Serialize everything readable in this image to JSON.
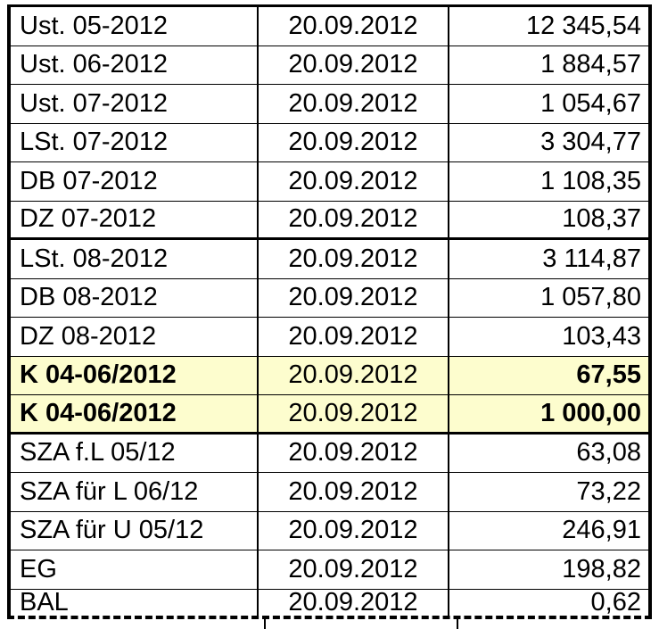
{
  "table": {
    "description": "payment-list-table",
    "columns": {
      "label": "tax-period",
      "date": "booking-date",
      "amount": "amount"
    },
    "rows": [
      {
        "label": "Ust. 05-2012",
        "date": "20.09.2012",
        "amount": "12 345,54",
        "highlight": false,
        "group_end": false
      },
      {
        "label": "Ust. 06-2012",
        "date": "20.09.2012",
        "amount": "1 884,57",
        "highlight": false,
        "group_end": false
      },
      {
        "label": "Ust. 07-2012",
        "date": "20.09.2012",
        "amount": "1 054,67",
        "highlight": false,
        "group_end": false
      },
      {
        "label": "LSt. 07-2012",
        "date": "20.09.2012",
        "amount": "3 304,77",
        "highlight": false,
        "group_end": false
      },
      {
        "label": "DB 07-2012",
        "date": "20.09.2012",
        "amount": "1 108,35",
        "highlight": false,
        "group_end": false
      },
      {
        "label": "DZ 07-2012",
        "date": "20.09.2012",
        "amount": "108,37",
        "highlight": false,
        "group_end": true
      },
      {
        "label": "LSt. 08-2012",
        "date": "20.09.2012",
        "amount": "3 114,87",
        "highlight": false,
        "group_end": false
      },
      {
        "label": "DB 08-2012",
        "date": "20.09.2012",
        "amount": "1 057,80",
        "highlight": false,
        "group_end": false
      },
      {
        "label": "DZ 08-2012",
        "date": "20.09.2012",
        "amount": "103,43",
        "highlight": false,
        "group_end": false
      },
      {
        "label": "K 04-06/2012",
        "date": "20.09.2012",
        "amount": "67,55",
        "highlight": true,
        "group_end": false
      },
      {
        "label": "K 04-06/2012",
        "date": "20.09.2012",
        "amount": "1 000,00",
        "highlight": true,
        "group_end": true
      },
      {
        "label": "SZA f.L 05/12",
        "date": "20.09.2012",
        "amount": "63,08",
        "highlight": false,
        "group_end": false
      },
      {
        "label": "SZA für L 06/12",
        "date": "20.09.2012",
        "amount": "73,22",
        "highlight": false,
        "group_end": false
      },
      {
        "label": "SZA für U 05/12",
        "date": "20.09.2012",
        "amount": "246,91",
        "highlight": false,
        "group_end": false
      },
      {
        "label": "EG",
        "date": "20.09.2012",
        "amount": "198,82",
        "highlight": false,
        "group_end": false
      },
      {
        "label": "BAL",
        "date": "20.09.2012",
        "amount": "0,62",
        "highlight": false,
        "group_end": false
      }
    ]
  },
  "colors": {
    "highlight_bg": "#FDFDCE",
    "border": "#000000",
    "text": "#000000",
    "background": "#FFFFFF"
  }
}
